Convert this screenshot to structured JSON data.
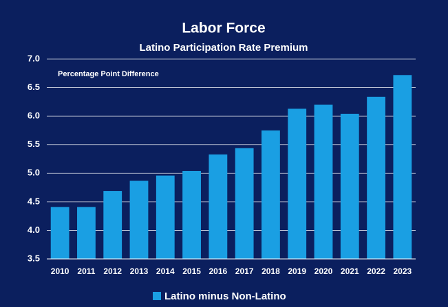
{
  "chart_data": {
    "type": "bar",
    "title": "Labor Force",
    "subtitle": "Latino Participation Rate Premium",
    "annotation": "Percentage Point Difference",
    "categories": [
      "2010",
      "2011",
      "2012",
      "2013",
      "2014",
      "2015",
      "2016",
      "2017",
      "2018",
      "2019",
      "2020",
      "2021",
      "2022",
      "2023"
    ],
    "series": [
      {
        "name": "Latino minus Non-Latino",
        "color": "#1a9fe3",
        "values": [
          4.41,
          4.41,
          4.69,
          4.87,
          4.96,
          5.04,
          5.33,
          5.44,
          5.75,
          6.13,
          6.2,
          6.04,
          6.34,
          6.72
        ]
      }
    ],
    "ylim": [
      3.5,
      7.0
    ],
    "yticks": [
      3.5,
      {
        "value": 4,
        "label": "4.0"
      },
      4.5,
      {
        "value": 5,
        "label": "5.0"
      },
      5.5,
      {
        "value": 6,
        "label": "6.0"
      },
      6.5,
      {
        "value": 7,
        "label": "7.0"
      }
    ],
    "grid": true,
    "legend": "bottom"
  }
}
